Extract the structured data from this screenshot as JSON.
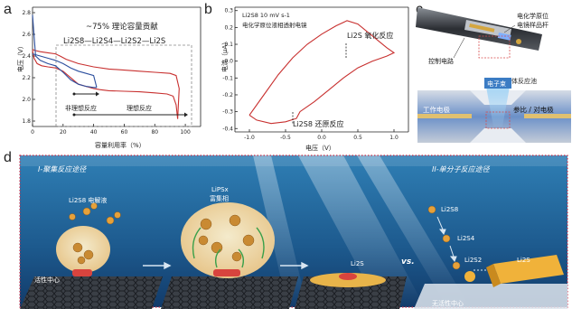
{
  "panels": {
    "a": {
      "letter": "a",
      "annotation_top": "~75% 理论容量贡献",
      "reaction_chain": "Li2S8—Li2S4—Li2S2—Li2S",
      "label_non_ideal": "非理想反应",
      "label_ideal": "理想反应",
      "xlabel": "容量利用率（%）",
      "ylabel": "电压（V）",
      "xticks": [
        "0",
        "20",
        "40",
        "60",
        "80",
        "100"
      ],
      "yticks": [
        "1.8",
        "2.0",
        "2.2",
        "2.4",
        "2.6",
        "2.8"
      ]
    },
    "b": {
      "letter": "b",
      "condition_line1": "Li2S8 10 mV s-1",
      "condition_line2": "电化学原位液相透射电镜",
      "oxidation_label": "Li2S 氧化反应",
      "reduction_label": "Li2S8 还原反应",
      "xlabel": "电压（V）",
      "ylabel": "电流（μA）",
      "xticks": [
        "-1.0",
        "-0.5",
        "0.0",
        "0.5",
        "1.0"
      ],
      "yticks": [
        "-0.4",
        "-0.3",
        "-0.2",
        "-0.1",
        "0.0",
        "0.1",
        "0.2",
        "0.3"
      ]
    },
    "c": {
      "letter": "c",
      "holder_label_1": "电化学原位",
      "holder_label_2": "电镜样品杆",
      "control_circuit": "控制电路",
      "cell_label": "电化学液体反应池",
      "electron_beam": "电子束",
      "working_electrode": "工作电极",
      "ref_counter": "参比 / 对电极"
    },
    "d": {
      "letter": "d",
      "pathway_I": "I-聚集反应途径",
      "pathway_II": "II-单分子反应途径",
      "li2s8_electrolyte": "Li2S8 电解液",
      "lips_rich": "LiPSx",
      "lips_rich_2": "富集相",
      "active_center": "活性中心",
      "li2s_product_1": "Li2S",
      "vs": "vs.",
      "chain_li2s8": "Li2S8",
      "chain_li2s4": "Li2S4",
      "chain_li2s2": "Li2S2",
      "chain_li2s": "Li2S",
      "inactive_center": "无活性中心"
    }
  },
  "colors": {
    "red_curve": "#c8302f",
    "blue_curve": "#2c4f9e",
    "dashed_box": "#888888",
    "frame_dotted": "#c8304a",
    "water_top": "#2f7fb5",
    "water_bottom": "#123b6a"
  },
  "chart_data": [
    {
      "panel": "a",
      "type": "line",
      "xlabel": "容量利用率（%）",
      "ylabel": "电压（V）",
      "xlim": [
        0,
        110
      ],
      "ylim": [
        1.75,
        2.85
      ],
      "series": [
        {
          "x": [
            0,
            1,
            3,
            6,
            10,
            15,
            20,
            30,
            40,
            42,
            44,
            50,
            60,
            70,
            80,
            88,
            92,
            94,
            95
          ],
          "y": [
            2.45,
            2.38,
            2.33,
            2.31,
            2.3,
            2.29,
            2.26,
            2.14,
            2.1,
            2.095,
            2.09,
            2.08,
            2.075,
            2.07,
            2.06,
            2.05,
            2.03,
            1.95,
            1.82
          ]
        },
        {
          "x": [
            95,
            96,
            94,
            90,
            80,
            70,
            60,
            50,
            40,
            30,
            22,
            18,
            15,
            10,
            5,
            2,
            0
          ],
          "y": [
            1.82,
            2.1,
            2.22,
            2.24,
            2.25,
            2.26,
            2.27,
            2.28,
            2.3,
            2.33,
            2.37,
            2.4,
            2.42,
            2.43,
            2.44,
            2.45,
            2.46
          ]
        },
        {
          "x": [
            0,
            2,
            5,
            10,
            15,
            20,
            25,
            30,
            35,
            40,
            42
          ],
          "y": [
            2.78,
            2.4,
            2.36,
            2.33,
            2.31,
            2.25,
            2.18,
            2.14,
            2.12,
            2.11,
            2.11
          ]
        },
        {
          "x": [
            42,
            40,
            35,
            30,
            25,
            20,
            15,
            10,
            5,
            0
          ],
          "y": [
            2.11,
            2.22,
            2.24,
            2.26,
            2.29,
            2.33,
            2.36,
            2.38,
            2.4,
            2.42
          ]
        }
      ]
    },
    {
      "panel": "b",
      "type": "line",
      "xlabel": "电压（V）",
      "ylabel": "电流（μA）",
      "xlim": [
        -1.2,
        1.2
      ],
      "ylim": [
        -0.42,
        0.32
      ],
      "series": [
        {
          "x": [
            -1.0,
            -0.8,
            -0.6,
            -0.4,
            -0.2,
            0.0,
            0.2,
            0.35,
            0.5,
            0.7,
            0.9,
            1.0,
            0.9,
            0.7,
            0.5,
            0.3,
            0.1,
            -0.1,
            -0.3,
            -0.35,
            -0.5,
            -0.7,
            -0.9,
            -1.0
          ],
          "y": [
            -0.32,
            -0.2,
            -0.08,
            0.02,
            0.1,
            0.16,
            0.21,
            0.24,
            0.22,
            0.15,
            0.08,
            0.05,
            0.03,
            0.0,
            -0.04,
            -0.1,
            -0.17,
            -0.24,
            -0.3,
            -0.34,
            -0.36,
            -0.37,
            -0.35,
            -0.32
          ]
        }
      ]
    }
  ]
}
